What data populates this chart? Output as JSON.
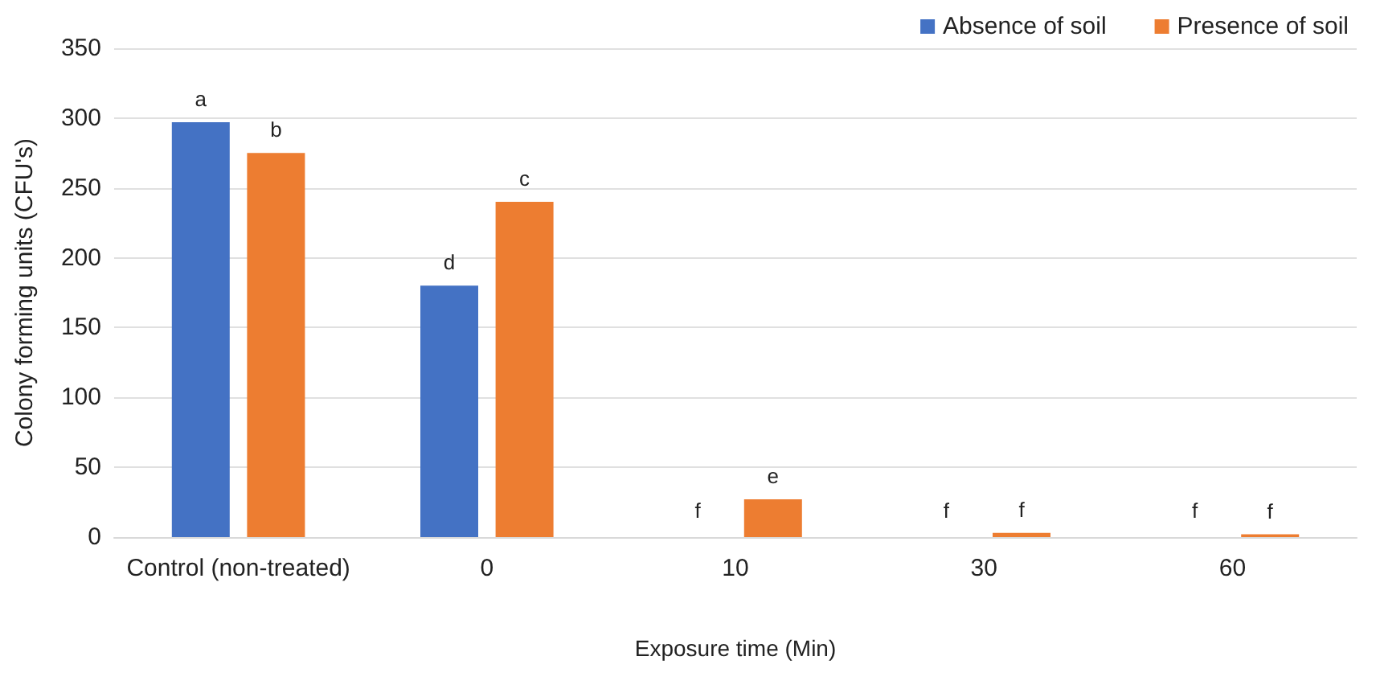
{
  "chart_data": {
    "type": "bar",
    "xlabel": "Exposure time (Min)",
    "ylabel": "Colony forming units (CFU's)",
    "categories": [
      "Control (non-treated)",
      "0",
      "10",
      "30",
      "60"
    ],
    "series": [
      {
        "name": "Absence of soil",
        "color": "#4472c4",
        "values": [
          297,
          180,
          0,
          0,
          0
        ],
        "value_labels": [
          "a",
          "d",
          null,
          null,
          null
        ]
      },
      {
        "name": "Presence of soil",
        "color": "#ed7d31",
        "values": [
          275,
          240,
          27,
          3,
          2
        ],
        "value_labels": [
          "b",
          "c",
          "e",
          "f",
          "f"
        ]
      }
    ],
    "annotations": [
      {
        "text": "f",
        "x": "10",
        "y": 0
      },
      {
        "text": "f",
        "x": "30",
        "y": 0
      },
      {
        "text": "f",
        "x": "60",
        "y": 0
      }
    ],
    "ylim": [
      0,
      350
    ],
    "yticks": [
      0,
      50,
      100,
      150,
      200,
      250,
      300,
      350
    ],
    "grid": "y",
    "legend": "top right"
  }
}
